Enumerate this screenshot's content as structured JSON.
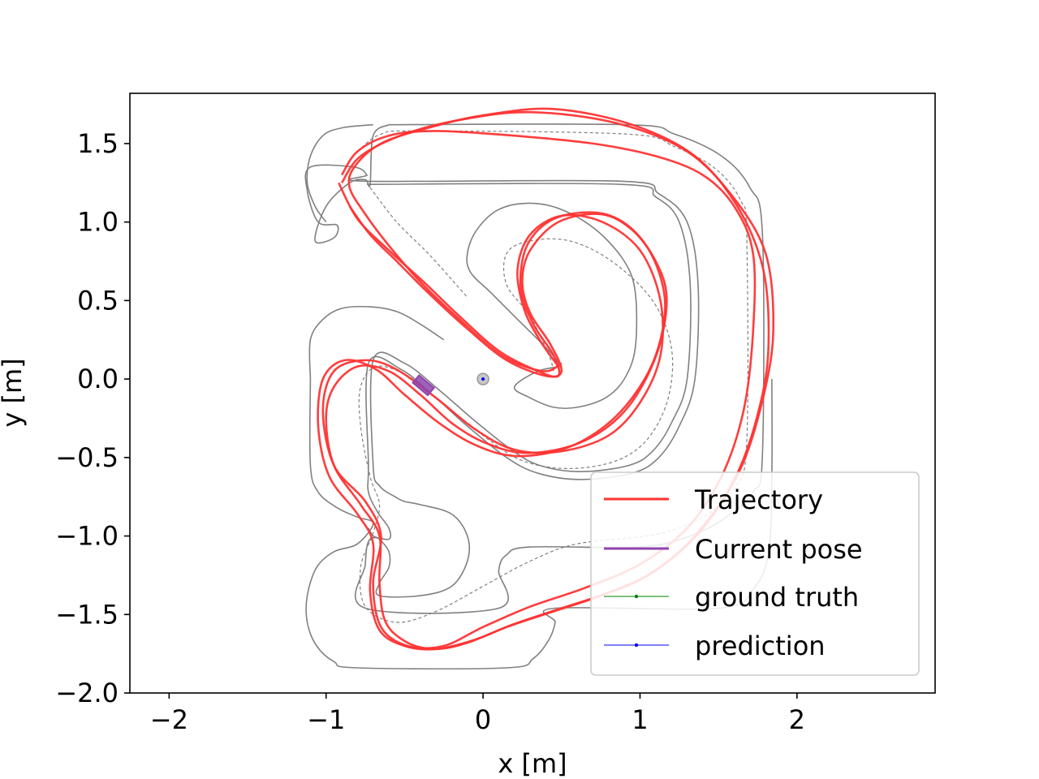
{
  "chart_data": {
    "type": "line",
    "title": "",
    "xlabel": "x [m]",
    "ylabel": "y [m]",
    "xlim": [
      -2.25,
      2.88
    ],
    "ylim": [
      -2.0,
      1.82
    ],
    "xticks": [
      -2,
      -1,
      0,
      1,
      2
    ],
    "xtick_labels": [
      "−2",
      "−1",
      "0",
      "1",
      "2"
    ],
    "yticks": [
      1.5,
      1.0,
      0.5,
      0.0,
      -0.5,
      -1.0,
      -1.5,
      -2.0
    ],
    "ytick_labels": [
      "1.5",
      "1.0",
      "0.5",
      "0.0",
      "−0.5",
      "−1.0",
      "−1.5",
      "−2.0"
    ],
    "grid": false,
    "legend_position": "lower right",
    "colors": {
      "trajectory": "#ff3333",
      "current_pose": "#8e44ad",
      "ground_truth": "#008000",
      "prediction": "#0000ff",
      "track": "#808080"
    },
    "legend": [
      {
        "label": "Trajectory",
        "color": "#ff3333",
        "marker": false
      },
      {
        "label": "Current pose",
        "color": "#8e44ad",
        "marker": false
      },
      {
        "label": "ground truth",
        "color": "#008000",
        "marker": true
      },
      {
        "label": "prediction",
        "color": "#0000ff",
        "marker": true
      }
    ],
    "track_outer": [
      [
        -0.6,
        1.62
      ],
      [
        0.92,
        1.62
      ],
      [
        1.22,
        1.56
      ],
      [
        1.52,
        1.42
      ],
      [
        1.7,
        1.22
      ],
      [
        1.78,
        0.92
      ],
      [
        1.78,
        -0.48
      ],
      [
        1.72,
        -0.72
      ],
      [
        1.55,
        -0.88
      ],
      [
        1.32,
        -1.0
      ],
      [
        1.0,
        -1.07
      ],
      [
        0.3,
        -1.07
      ],
      [
        0.15,
        -1.12
      ],
      [
        0.1,
        -1.22
      ],
      [
        0.1,
        -1.46
      ],
      [
        -0.75,
        -1.46
      ],
      [
        -0.75,
        -1.18
      ],
      [
        -0.72,
        -1.02
      ],
      [
        -0.6,
        -1.02
      ],
      [
        -0.6,
        -0.95
      ],
      [
        -0.67,
        -0.85
      ],
      [
        -0.73,
        -0.72
      ],
      [
        -0.73,
        -0.55
      ],
      [
        -0.73,
        0.1
      ],
      [
        -0.52,
        0.06
      ],
      [
        -0.3,
        -0.12
      ],
      [
        -0.1,
        -0.3
      ],
      [
        0.15,
        -0.5
      ],
      [
        0.35,
        -0.6
      ],
      [
        0.62,
        -0.64
      ],
      [
        0.95,
        -0.6
      ],
      [
        1.12,
        -0.5
      ],
      [
        1.25,
        -0.3
      ],
      [
        1.35,
        0.0
      ],
      [
        1.37,
        0.6
      ],
      [
        1.3,
        1.0
      ],
      [
        1.12,
        1.18
      ],
      [
        0.88,
        1.26
      ],
      [
        -0.74,
        1.26
      ],
      [
        -0.74,
        1.3
      ],
      [
        -0.82,
        1.35
      ],
      [
        -1.1,
        1.35
      ],
      [
        -1.12,
        1.2
      ],
      [
        -1.05,
        1.0
      ],
      [
        -0.93,
        0.98
      ],
      [
        -0.95,
        0.9
      ],
      [
        -1.07,
        0.88
      ],
      [
        -1.0,
        1.1
      ],
      [
        -0.85,
        1.25
      ],
      [
        -0.75,
        1.27
      ],
      [
        -0.72,
        1.24
      ],
      [
        -0.7,
        1.55
      ],
      [
        -0.6,
        1.62
      ]
    ],
    "track_inner": [
      [
        -0.74,
        1.24
      ],
      [
        0.88,
        1.24
      ],
      [
        1.1,
        1.16
      ],
      [
        1.25,
        1.0
      ],
      [
        1.32,
        0.6
      ],
      [
        1.3,
        0.0
      ],
      [
        1.2,
        -0.28
      ],
      [
        1.08,
        -0.46
      ],
      [
        0.93,
        -0.55
      ],
      [
        0.62,
        -0.59
      ],
      [
        0.36,
        -0.55
      ],
      [
        0.18,
        -0.45
      ],
      [
        -0.06,
        -0.26
      ],
      [
        -0.28,
        -0.07
      ],
      [
        -0.5,
        0.1
      ],
      [
        -0.7,
        0.12
      ],
      [
        -0.7,
        -0.55
      ],
      [
        -0.66,
        -0.68
      ],
      [
        -0.56,
        -0.75
      ],
      [
        -0.5,
        -0.78
      ],
      [
        -0.4,
        -0.8
      ],
      [
        -0.2,
        -0.86
      ],
      [
        -0.1,
        -1.0
      ],
      [
        -0.1,
        -1.16
      ],
      [
        -0.2,
        -1.32
      ],
      [
        -0.4,
        -1.38
      ],
      [
        -0.66,
        -1.38
      ],
      [
        -0.66,
        -1.3
      ],
      [
        -0.6,
        -1.2
      ],
      [
        -0.6,
        -1.1
      ],
      [
        -0.66,
        -1.02
      ],
      [
        -0.7,
        -1.0
      ],
      [
        -0.73,
        -0.95
      ]
    ],
    "track_island": [
      [
        0.5,
        0.08
      ],
      [
        0.42,
        0.18
      ],
      [
        0.22,
        0.38
      ],
      [
        0.05,
        0.55
      ],
      [
        -0.08,
        0.68
      ],
      [
        -0.1,
        0.8
      ],
      [
        -0.04,
        0.95
      ],
      [
        0.1,
        1.08
      ],
      [
        0.3,
        1.12
      ],
      [
        0.5,
        1.08
      ],
      [
        0.72,
        0.95
      ],
      [
        0.9,
        0.75
      ],
      [
        0.97,
        0.55
      ],
      [
        0.97,
        0.2
      ],
      [
        0.9,
        0.0
      ],
      [
        0.78,
        -0.12
      ],
      [
        0.6,
        -0.18
      ],
      [
        0.45,
        -0.18
      ],
      [
        0.3,
        -0.12
      ],
      [
        0.2,
        -0.05
      ],
      [
        0.35,
        0.05
      ],
      [
        0.5,
        0.08
      ]
    ],
    "track_left_lobe": [
      [
        -1.1,
        0.0
      ],
      [
        -1.1,
        -0.55
      ],
      [
        -1.05,
        -0.72
      ],
      [
        -0.93,
        -0.82
      ],
      [
        -0.8,
        -0.88
      ],
      [
        -0.7,
        -0.92
      ],
      [
        -0.8,
        -1.05
      ],
      [
        -0.95,
        -1.1
      ],
      [
        -1.06,
        -1.2
      ],
      [
        -1.12,
        -1.38
      ],
      [
        -1.12,
        -1.55
      ],
      [
        -1.06,
        -1.7
      ],
      [
        -0.95,
        -1.8
      ],
      [
        -0.8,
        -1.84
      ],
      [
        0.15,
        -1.84
      ],
      [
        0.32,
        -1.78
      ],
      [
        0.42,
        -1.66
      ],
      [
        0.46,
        -1.55
      ],
      [
        0.46,
        -1.46
      ],
      [
        1.5,
        -1.46
      ],
      [
        1.72,
        -1.34
      ],
      [
        1.82,
        -1.1
      ],
      [
        1.84,
        -0.6
      ],
      [
        1.84,
        0.0
      ]
    ],
    "track_left_upper": [
      [
        -1.1,
        0.0
      ],
      [
        -1.1,
        0.25
      ],
      [
        -1.02,
        0.38
      ],
      [
        -0.9,
        0.45
      ],
      [
        -0.72,
        0.46
      ],
      [
        -0.55,
        0.43
      ],
      [
        -0.4,
        0.35
      ],
      [
        -0.25,
        0.25
      ]
    ],
    "track_top_lobe": [
      [
        -1.0,
        1.0
      ],
      [
        -1.07,
        1.1
      ],
      [
        -1.12,
        1.25
      ],
      [
        -1.1,
        1.42
      ],
      [
        -1.02,
        1.55
      ],
      [
        -0.9,
        1.6
      ],
      [
        -0.7,
        1.62
      ]
    ],
    "centerline_dashed": [
      [
        -0.8,
        1.45
      ],
      [
        -0.65,
        1.56
      ],
      [
        -0.4,
        1.58
      ],
      [
        0.92,
        1.56
      ],
      [
        1.22,
        1.48
      ],
      [
        1.48,
        1.34
      ],
      [
        1.64,
        1.14
      ],
      [
        1.68,
        0.9
      ],
      [
        1.68,
        -0.4
      ],
      [
        1.6,
        -0.7
      ],
      [
        1.4,
        -0.88
      ],
      [
        1.1,
        -0.99
      ],
      [
        0.6,
        -1.05
      ],
      [
        0.3,
        -1.16
      ],
      [
        0.0,
        -1.32
      ],
      [
        -0.3,
        -1.48
      ],
      [
        -0.55,
        -1.55
      ],
      [
        -0.75,
        -1.45
      ],
      [
        -0.78,
        -1.2
      ],
      [
        -0.7,
        -0.98
      ],
      [
        -0.66,
        -0.8
      ],
      [
        -0.72,
        -0.62
      ],
      [
        -0.78,
        -0.3
      ],
      [
        -0.78,
        -0.05
      ],
      [
        -0.68,
        0.08
      ],
      [
        -0.48,
        0.02
      ],
      [
        -0.25,
        -0.16
      ],
      [
        0.0,
        -0.36
      ],
      [
        0.25,
        -0.52
      ],
      [
        0.55,
        -0.57
      ],
      [
        0.85,
        -0.52
      ],
      [
        1.05,
        -0.38
      ],
      [
        1.18,
        -0.12
      ],
      [
        1.2,
        0.2
      ],
      [
        1.08,
        0.5
      ],
      [
        0.82,
        0.75
      ],
      [
        0.55,
        0.88
      ],
      [
        0.3,
        0.88
      ],
      [
        0.15,
        0.8
      ],
      [
        0.15,
        0.6
      ],
      [
        0.3,
        0.4
      ],
      [
        0.42,
        0.15
      ],
      [
        0.45,
        0.05
      ]
    ],
    "dashed_inner_left": [
      [
        -0.72,
        1.22
      ],
      [
        -0.55,
        1.0
      ],
      [
        -0.35,
        0.8
      ],
      [
        -0.17,
        0.6
      ],
      [
        -0.1,
        0.52
      ]
    ],
    "trajectory_series": [
      [
        [
          -0.85,
          1.1
        ],
        [
          -0.72,
          0.92
        ],
        [
          -0.55,
          0.75
        ],
        [
          -0.35,
          0.55
        ],
        [
          -0.1,
          0.32
        ],
        [
          0.15,
          0.12
        ],
        [
          0.4,
          0.02
        ],
        [
          0.5,
          0.05
        ],
        [
          0.43,
          0.22
        ],
        [
          0.3,
          0.42
        ],
        [
          0.25,
          0.62
        ],
        [
          0.3,
          0.82
        ],
        [
          0.48,
          1.0
        ],
        [
          0.75,
          1.05
        ],
        [
          0.95,
          0.95
        ],
        [
          1.1,
          0.75
        ],
        [
          1.17,
          0.52
        ],
        [
          1.12,
          0.2
        ],
        [
          0.98,
          -0.1
        ],
        [
          0.8,
          -0.3
        ],
        [
          0.55,
          -0.43
        ],
        [
          0.25,
          -0.47
        ],
        [
          0.0,
          -0.4
        ],
        [
          -0.2,
          -0.28
        ],
        [
          -0.4,
          -0.1
        ],
        [
          -0.6,
          0.05
        ],
        [
          -0.8,
          0.08
        ],
        [
          -0.95,
          -0.05
        ],
        [
          -1.0,
          -0.25
        ],
        [
          -0.95,
          -0.55
        ],
        [
          -0.78,
          -0.8
        ],
        [
          -0.66,
          -1.0
        ],
        [
          -0.66,
          -1.3
        ],
        [
          -0.62,
          -1.55
        ],
        [
          -0.48,
          -1.68
        ],
        [
          -0.3,
          -1.72
        ],
        [
          -0.1,
          -1.68
        ],
        [
          0.15,
          -1.58
        ],
        [
          0.45,
          -1.48
        ],
        [
          0.75,
          -1.38
        ],
        [
          1.05,
          -1.25
        ],
        [
          1.35,
          -1.0
        ],
        [
          1.62,
          -0.6
        ],
        [
          1.78,
          -0.1
        ],
        [
          1.82,
          0.3
        ],
        [
          1.78,
          0.72
        ],
        [
          1.62,
          1.1
        ],
        [
          1.35,
          1.42
        ],
        [
          0.95,
          1.62
        ],
        [
          0.45,
          1.72
        ],
        [
          0.0,
          1.68
        ],
        [
          -0.35,
          1.6
        ],
        [
          -0.65,
          1.5
        ],
        [
          -0.82,
          1.35
        ],
        [
          -0.85,
          1.22
        ],
        [
          -0.75,
          1.05
        ],
        [
          -0.6,
          0.85
        ],
        [
          -0.4,
          0.62
        ],
        [
          -0.15,
          0.38
        ],
        [
          0.12,
          0.15
        ],
        [
          0.38,
          0.05
        ],
        [
          0.5,
          0.1
        ]
      ],
      [
        [
          -0.92,
          1.25
        ],
        [
          -0.8,
          1.02
        ],
        [
          -0.6,
          0.82
        ],
        [
          -0.38,
          0.62
        ],
        [
          -0.15,
          0.4
        ],
        [
          0.1,
          0.18
        ],
        [
          0.35,
          0.05
        ],
        [
          0.48,
          0.02
        ],
        [
          0.45,
          0.15
        ],
        [
          0.32,
          0.35
        ],
        [
          0.24,
          0.58
        ],
        [
          0.28,
          0.85
        ],
        [
          0.45,
          1.02
        ],
        [
          0.72,
          1.06
        ],
        [
          0.92,
          0.98
        ],
        [
          1.08,
          0.78
        ],
        [
          1.16,
          0.48
        ],
        [
          1.1,
          0.15
        ],
        [
          0.95,
          -0.12
        ],
        [
          0.75,
          -0.32
        ],
        [
          0.5,
          -0.45
        ],
        [
          0.2,
          -0.49
        ],
        [
          -0.05,
          -0.42
        ],
        [
          -0.28,
          -0.28
        ],
        [
          -0.5,
          -0.1
        ],
        [
          -0.68,
          0.06
        ],
        [
          -0.88,
          0.12
        ],
        [
          -1.02,
          0.0
        ],
        [
          -1.05,
          -0.3
        ],
        [
          -0.98,
          -0.62
        ],
        [
          -0.8,
          -0.86
        ],
        [
          -0.7,
          -1.05
        ],
        [
          -0.72,
          -1.35
        ],
        [
          -0.66,
          -1.6
        ],
        [
          -0.5,
          -1.7
        ],
        [
          -0.3,
          -1.72
        ],
        [
          -0.05,
          -1.66
        ],
        [
          0.2,
          -1.56
        ],
        [
          0.5,
          -1.46
        ],
        [
          0.8,
          -1.36
        ],
        [
          1.1,
          -1.22
        ],
        [
          1.4,
          -0.95
        ],
        [
          1.65,
          -0.55
        ],
        [
          1.8,
          -0.05
        ],
        [
          1.85,
          0.35
        ],
        [
          1.8,
          0.8
        ],
        [
          1.6,
          1.15
        ],
        [
          1.3,
          1.45
        ],
        [
          0.85,
          1.63
        ],
        [
          0.3,
          1.7
        ],
        [
          -0.15,
          1.65
        ],
        [
          -0.5,
          1.56
        ],
        [
          -0.78,
          1.42
        ],
        [
          -0.9,
          1.25
        ]
      ],
      [
        [
          -0.9,
          1.3
        ],
        [
          -0.8,
          1.45
        ],
        [
          -0.6,
          1.55
        ],
        [
          -0.3,
          1.58
        ],
        [
          0.2,
          1.55
        ],
        [
          0.7,
          1.5
        ],
        [
          1.1,
          1.42
        ],
        [
          1.4,
          1.3
        ],
        [
          1.6,
          1.1
        ],
        [
          1.72,
          0.8
        ],
        [
          1.72,
          0.3
        ],
        [
          1.66,
          -0.2
        ],
        [
          1.52,
          -0.62
        ],
        [
          1.3,
          -0.95
        ],
        [
          1.0,
          -1.18
        ],
        [
          0.65,
          -1.33
        ],
        [
          0.3,
          -1.45
        ],
        [
          0.0,
          -1.58
        ],
        [
          -0.25,
          -1.7
        ],
        [
          -0.48,
          -1.7
        ],
        [
          -0.65,
          -1.58
        ],
        [
          -0.7,
          -1.3
        ],
        [
          -0.65,
          -1.0
        ],
        [
          -0.75,
          -0.78
        ],
        [
          -0.95,
          -0.55
        ],
        [
          -1.02,
          -0.2
        ],
        [
          -0.95,
          0.05
        ],
        [
          -0.75,
          0.12
        ],
        [
          -0.55,
          0.06
        ],
        [
          -0.3,
          -0.12
        ],
        [
          -0.05,
          -0.32
        ],
        [
          0.2,
          -0.45
        ],
        [
          0.5,
          -0.46
        ],
        [
          0.8,
          -0.36
        ],
        [
          1.0,
          -0.15
        ],
        [
          1.13,
          0.15
        ],
        [
          1.13,
          0.5
        ],
        [
          1.0,
          0.82
        ],
        [
          0.76,
          1.0
        ],
        [
          0.5,
          1.04
        ],
        [
          0.3,
          0.92
        ],
        [
          0.22,
          0.7
        ],
        [
          0.26,
          0.45
        ],
        [
          0.36,
          0.25
        ],
        [
          0.48,
          0.08
        ]
      ]
    ],
    "current_pose": {
      "x": -0.38,
      "y": -0.04,
      "heading_deg": -40
    },
    "origin_marker": {
      "x": 0.0,
      "y": 0.0
    }
  }
}
